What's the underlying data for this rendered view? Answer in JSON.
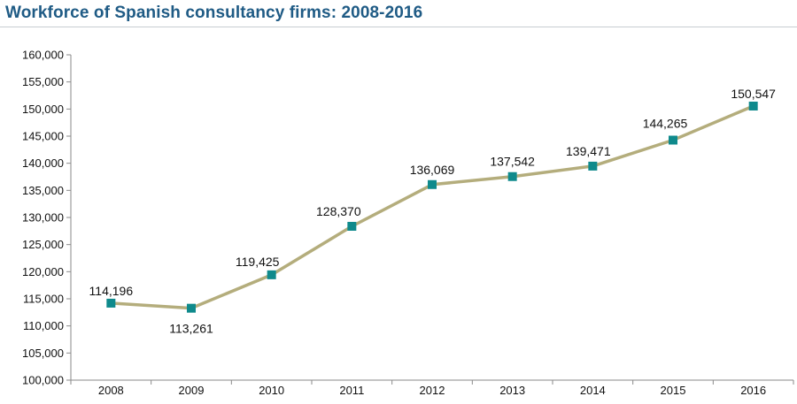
{
  "chart_data": {
    "type": "line",
    "title": "Workforce of Spanish consultancy firms: 2008-2016",
    "xlabel": "",
    "ylabel": "",
    "categories": [
      "2008",
      "2009",
      "2010",
      "2011",
      "2012",
      "2013",
      "2014",
      "2015",
      "2016"
    ],
    "series": [
      {
        "name": "Workforce",
        "values": [
          114196,
          113261,
          119425,
          128370,
          136069,
          137542,
          139471,
          144265,
          150547
        ],
        "labels": [
          "114,196",
          "113,261",
          "119,425",
          "128,370",
          "136,069",
          "137,542",
          "139,471",
          "144,265",
          "150,547"
        ]
      }
    ],
    "ylim": [
      100000,
      160000
    ],
    "yticks": [
      100000,
      105000,
      110000,
      115000,
      120000,
      125000,
      130000,
      135000,
      140000,
      145000,
      150000,
      155000,
      160000
    ],
    "ytick_labels": [
      "100,000",
      "105,000",
      "110,000",
      "115,000",
      "120,000",
      "125,000",
      "130,000",
      "135,000",
      "140,000",
      "145,000",
      "150,000",
      "155,000",
      "160,000"
    ],
    "grid": false,
    "legend": "none",
    "colors": {
      "line": "#b4ad7c",
      "marker": "#0f8a8c",
      "axis": "#8a8a8a",
      "title": "#1f5b85"
    }
  }
}
